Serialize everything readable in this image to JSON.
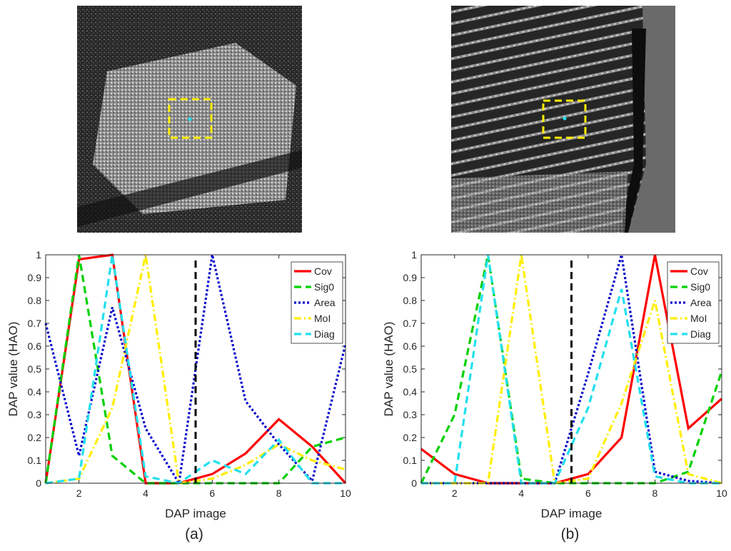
{
  "chart_data": [
    {
      "type": "line",
      "caption": "(a)",
      "xlabel": "DAP image",
      "ylabel": "DAP value (HAO)",
      "x": [
        1,
        2,
        3,
        4,
        5,
        6,
        7,
        8,
        9,
        10
      ],
      "xlim": [
        1,
        10
      ],
      "xticks": [
        2,
        4,
        6,
        8,
        10
      ],
      "ylim": [
        0,
        1
      ],
      "yticks": [
        0,
        0.1,
        0.2,
        0.3,
        0.4,
        0.5,
        0.6,
        0.7,
        0.8,
        0.9,
        1
      ],
      "vline": 5.5,
      "legend": "northeast",
      "series": [
        {
          "name": "Cov",
          "color": "#ff0000",
          "dash": "solid",
          "values": [
            0,
            0.98,
            1.0,
            0,
            0,
            0.04,
            0.13,
            0.28,
            0.16,
            0
          ]
        },
        {
          "name": "Sig0",
          "color": "#00d000",
          "dash": "dashed",
          "values": [
            0,
            1.0,
            0.12,
            0,
            0,
            0,
            0,
            0,
            0.16,
            0.2
          ]
        },
        {
          "name": "Area",
          "color": "#0000cc",
          "dash": "dotted",
          "values": [
            0.7,
            0.12,
            0.77,
            0.24,
            0,
            1.0,
            0.36,
            0.17,
            0.01,
            0.61
          ]
        },
        {
          "name": "MoI",
          "color": "#ffee00",
          "dash": "dashdot",
          "values": [
            0,
            0.02,
            0.33,
            1.0,
            0,
            0.02,
            0.08,
            0.17,
            0.1,
            0.06
          ]
        },
        {
          "name": "Diag",
          "color": "#22e0ee",
          "dash": "dashed",
          "values": [
            0,
            0.02,
            1.0,
            0.03,
            0,
            0.1,
            0.04,
            0.19,
            0,
            0
          ]
        }
      ]
    },
    {
      "type": "line",
      "caption": "(b)",
      "xlabel": "DAP image",
      "ylabel": "DAP value (HAO)",
      "x": [
        1,
        2,
        3,
        4,
        5,
        6,
        7,
        8,
        9,
        10
      ],
      "xlim": [
        1,
        10
      ],
      "xticks": [
        2,
        4,
        6,
        8,
        10
      ],
      "ylim": [
        0,
        1
      ],
      "yticks": [
        0,
        0.1,
        0.2,
        0.3,
        0.4,
        0.5,
        0.6,
        0.7,
        0.8,
        0.9,
        1
      ],
      "vline": 5.5,
      "legend": "northeast",
      "series": [
        {
          "name": "Cov",
          "color": "#ff0000",
          "dash": "solid",
          "values": [
            0.15,
            0.04,
            0,
            0,
            0,
            0.04,
            0.2,
            1.0,
            0.24,
            0.37
          ]
        },
        {
          "name": "Sig0",
          "color": "#00d000",
          "dash": "dashed",
          "values": [
            0,
            0.3,
            1.0,
            0.02,
            0,
            0,
            0,
            0,
            0.05,
            0.49
          ]
        },
        {
          "name": "Area",
          "color": "#0000cc",
          "dash": "dotted",
          "values": [
            0,
            0,
            0,
            0,
            0,
            0.48,
            1.0,
            0.05,
            0.01,
            0
          ]
        },
        {
          "name": "MoI",
          "color": "#ffee00",
          "dash": "dashdot",
          "values": [
            0,
            0,
            0,
            1.0,
            0,
            0.02,
            0.35,
            0.8,
            0.04,
            0
          ]
        },
        {
          "name": "Diag",
          "color": "#22e0ee",
          "dash": "dashed",
          "values": [
            0,
            0,
            1.0,
            0,
            0,
            0.33,
            0.85,
            0.03,
            0,
            0
          ]
        }
      ]
    }
  ]
}
